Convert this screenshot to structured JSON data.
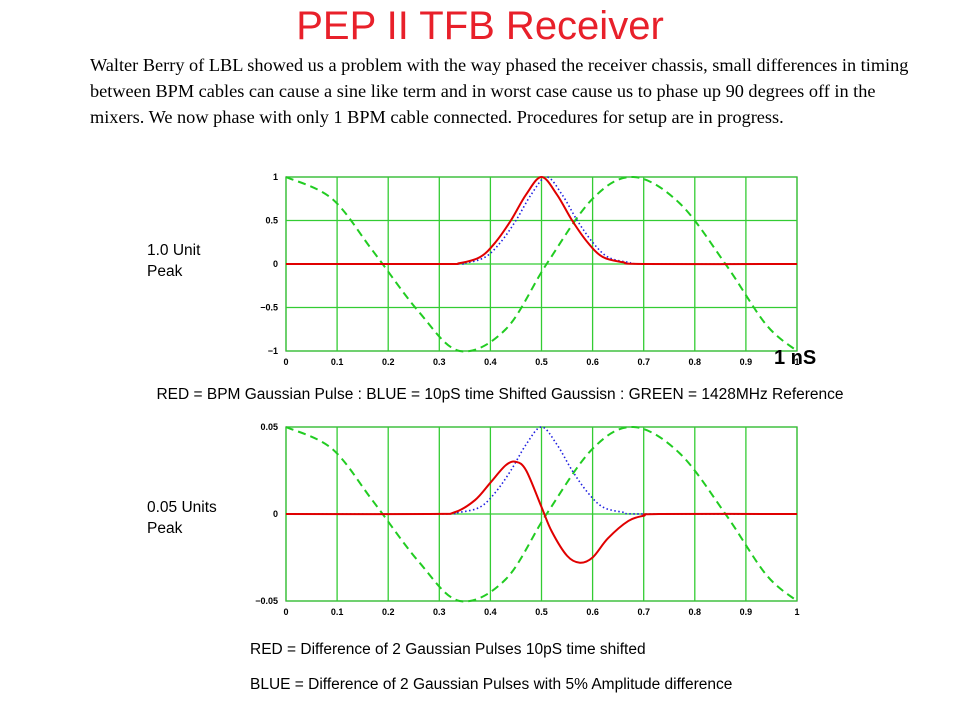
{
  "title": "PEP II TFB Receiver",
  "paragraph": "Walter Berry of LBL showed us a problem with the way phased the receiver chassis, small differences in timing between BPM cables can cause a sine like term and in worst case cause us to phase up 90 degrees off in the mixers.  We now phase with only 1 BPM cable connected.  Procedures for setup are in progress.",
  "plot1_peak_line1": "1.0 Unit",
  "plot1_peak_line2": "Peak",
  "plot2_peak_line1": "0.05 Units",
  "plot2_peak_line2": "Peak",
  "x_unit_label": "1 nS",
  "legend1": "RED = BPM Gaussian Pulse : BLUE = 10pS time Shifted Gaussisn : GREEN = 1428MHz Reference",
  "legend2a": "RED = Difference of 2 Gaussian Pulses 10pS time shifted",
  "legend2b": "BLUE = Difference of 2 Gaussian Pulses with 5% Amplitude difference",
  "colors": {
    "title": "#e8202a",
    "red": "#e00000",
    "blue": "#2020e0",
    "green": "#22cc22",
    "grid": "#33cc33"
  },
  "chart_data": [
    {
      "type": "line",
      "x_ticks": [
        "0",
        "0.1",
        "0.2",
        "0.3",
        "0.4",
        "0.5",
        "0.6",
        "0.7",
        "0.8",
        "0.9",
        "1"
      ],
      "y_ticks": [
        "1",
        "0.5",
        "0",
        "−0.5",
        "−1"
      ],
      "xlim": [
        0,
        1
      ],
      "ylim": [
        -1,
        1
      ],
      "grid": true,
      "series": [
        {
          "name": "RED = BPM Gaussian Pulse",
          "color": "red",
          "style": "solid",
          "x": [
            0,
            0.3,
            0.34,
            0.38,
            0.41,
            0.44,
            0.47,
            0.5,
            0.53,
            0.56,
            0.59,
            0.62,
            0.66,
            0.7,
            1
          ],
          "y": [
            0,
            0,
            0.01,
            0.08,
            0.25,
            0.5,
            0.8,
            1,
            0.8,
            0.5,
            0.25,
            0.08,
            0.02,
            0,
            0
          ]
        },
        {
          "name": "BLUE = 10pS time Shifted Gaussisn",
          "color": "blue",
          "style": "dotted",
          "x": [
            0,
            0.31,
            0.35,
            0.39,
            0.42,
            0.45,
            0.48,
            0.51,
            0.54,
            0.57,
            0.6,
            0.63,
            0.67,
            0.71,
            1
          ],
          "y": [
            0,
            0,
            0.01,
            0.08,
            0.25,
            0.5,
            0.8,
            1,
            0.8,
            0.5,
            0.25,
            0.08,
            0.02,
            0,
            0
          ]
        },
        {
          "name": "GREEN = 1428MHz Reference",
          "color": "green",
          "style": "dashed",
          "x": [
            0,
            0.09,
            0.17,
            0.26,
            0.34,
            0.43,
            0.51,
            0.6,
            0.68,
            0.77,
            0.86,
            0.94,
            1
          ],
          "y": [
            1,
            0.75,
            0.15,
            -0.55,
            -1,
            -0.75,
            0,
            0.75,
            1,
            0.7,
            0,
            -0.7,
            -1
          ]
        }
      ]
    },
    {
      "type": "line",
      "x_ticks": [
        "0",
        "0.1",
        "0.2",
        "0.3",
        "0.4",
        "0.5",
        "0.6",
        "0.7",
        "0.8",
        "0.9",
        "1"
      ],
      "y_ticks": [
        "0.05",
        "0",
        "−0.05"
      ],
      "xlim": [
        0,
        1
      ],
      "ylim": [
        -0.05,
        0.05
      ],
      "grid": true,
      "series": [
        {
          "name": "RED = Difference of 2 Gaussian Pulses 10pS time shifted",
          "color": "red",
          "style": "solid",
          "x": [
            0,
            0.28,
            0.33,
            0.37,
            0.4,
            0.43,
            0.45,
            0.47,
            0.5,
            0.52,
            0.55,
            0.575,
            0.6,
            0.63,
            0.67,
            0.7,
            0.73,
            1
          ],
          "y": [
            0,
            0,
            0.001,
            0.008,
            0.018,
            0.028,
            0.03,
            0.025,
            0.004,
            -0.01,
            -0.024,
            -0.028,
            -0.025,
            -0.014,
            -0.004,
            -0.001,
            0,
            0
          ]
        },
        {
          "name": "BLUE = Difference of 2 Gaussian Pulses with 5% Amplitude difference",
          "color": "blue",
          "style": "dotted",
          "x": [
            0,
            0.3,
            0.34,
            0.38,
            0.41,
            0.44,
            0.47,
            0.5,
            0.53,
            0.56,
            0.59,
            0.62,
            0.66,
            0.7,
            1
          ],
          "y": [
            0,
            0,
            0.001,
            0.004,
            0.0125,
            0.025,
            0.04,
            0.05,
            0.04,
            0.025,
            0.0125,
            0.004,
            0.001,
            0,
            0
          ]
        },
        {
          "name": "GREEN = 1428MHz Reference",
          "color": "green",
          "style": "dashed",
          "x": [
            0,
            0.09,
            0.17,
            0.26,
            0.34,
            0.43,
            0.51,
            0.6,
            0.68,
            0.77,
            0.86,
            0.94,
            1
          ],
          "y": [
            0.05,
            0.0375,
            0.0075,
            -0.0275,
            -0.05,
            -0.0375,
            0,
            0.0375,
            0.05,
            0.035,
            0,
            -0.035,
            -0.05
          ]
        }
      ]
    }
  ]
}
